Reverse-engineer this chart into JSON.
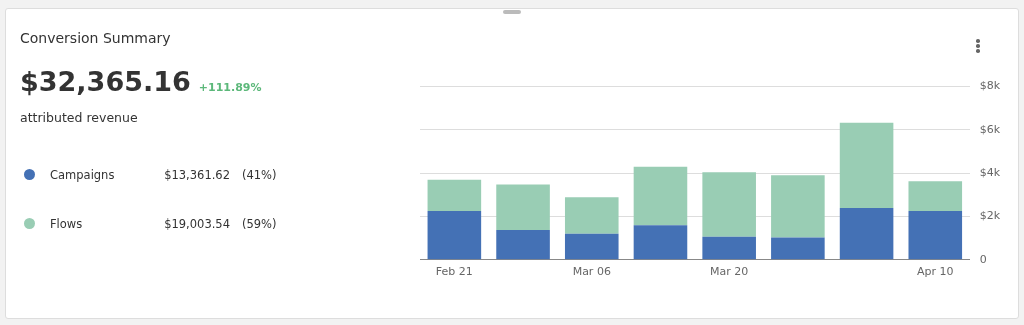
{
  "chart_data": {
    "type": "bar",
    "title": "Conversion Summary",
    "stacked": true,
    "legend": "left",
    "grid": "y",
    "categories": [
      "Feb 21",
      null,
      "Mar 06",
      null,
      "Mar 20",
      null,
      null,
      "Apr 10"
    ],
    "series": [
      {
        "name": "Campaigns",
        "color": "#4471b5",
        "values": [
          2250,
          1380,
          1200,
          1600,
          1070,
          1030,
          2390,
          2250
        ]
      },
      {
        "name": "Flows",
        "color": "#99cdb4",
        "values": [
          1450,
          2100,
          1690,
          2700,
          2970,
          2880,
          3940,
          1380
        ]
      }
    ],
    "ylim": [
      0,
      8000
    ],
    "yticks": [
      0,
      {
        "value": 2000,
        "label": "$2k"
      },
      {
        "value": 4000,
        "label": "$4k"
      },
      {
        "value": 6000,
        "label": "$6k"
      },
      {
        "value": 8000,
        "label": "$8k"
      }
    ],
    "annotations": [
      "$32,365.16",
      "+111.89%",
      "attributed revenue",
      "$13,361.62",
      "(41%)",
      "$19,003.54",
      "(59%)"
    ]
  }
}
